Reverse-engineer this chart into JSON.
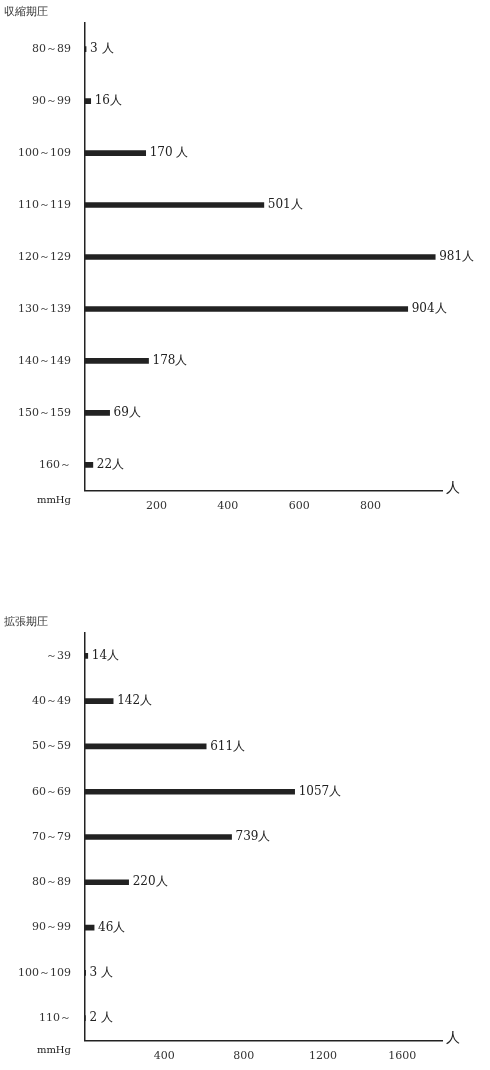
{
  "chart_data": [
    {
      "type": "bar",
      "orientation": "horizontal",
      "title": "収縮期圧",
      "xlabel": "人",
      "ylabel": "mmHg",
      "categories": [
        "80～89",
        "90～99",
        "100～109",
        "110～119",
        "120～129",
        "130～139",
        "140～149",
        "150～159",
        "160～"
      ],
      "values": [
        3,
        16,
        170,
        501,
        981,
        904,
        178,
        69,
        22
      ],
      "value_labels": [
        "3 人",
        "16人",
        "170 人",
        "501人",
        "981人",
        "904人",
        "178人",
        "69人",
        "22人"
      ],
      "color": "#222222",
      "xlim": [
        0,
        1000
      ],
      "xticks": [
        200,
        400,
        600,
        800
      ],
      "grid": false,
      "legend": false
    },
    {
      "type": "bar",
      "orientation": "horizontal",
      "title": "拡張期圧",
      "xlabel": "人",
      "ylabel": "mmHg",
      "categories": [
        "～39",
        "40～49",
        "50～59",
        "60～69",
        "70～79",
        "80～89",
        "90～99",
        "100～109",
        "110～"
      ],
      "values": [
        14,
        142,
        611,
        1057,
        739,
        220,
        46,
        3,
        2
      ],
      "value_labels": [
        "14人",
        "142人",
        "611人",
        "1057人",
        "739人",
        "220人",
        "46人",
        "3 人",
        "2 人"
      ],
      "color": "#222222",
      "xlim": [
        0,
        1800
      ],
      "xticks": [
        400,
        800,
        1200,
        1600
      ],
      "grid": false,
      "legend": false
    }
  ]
}
